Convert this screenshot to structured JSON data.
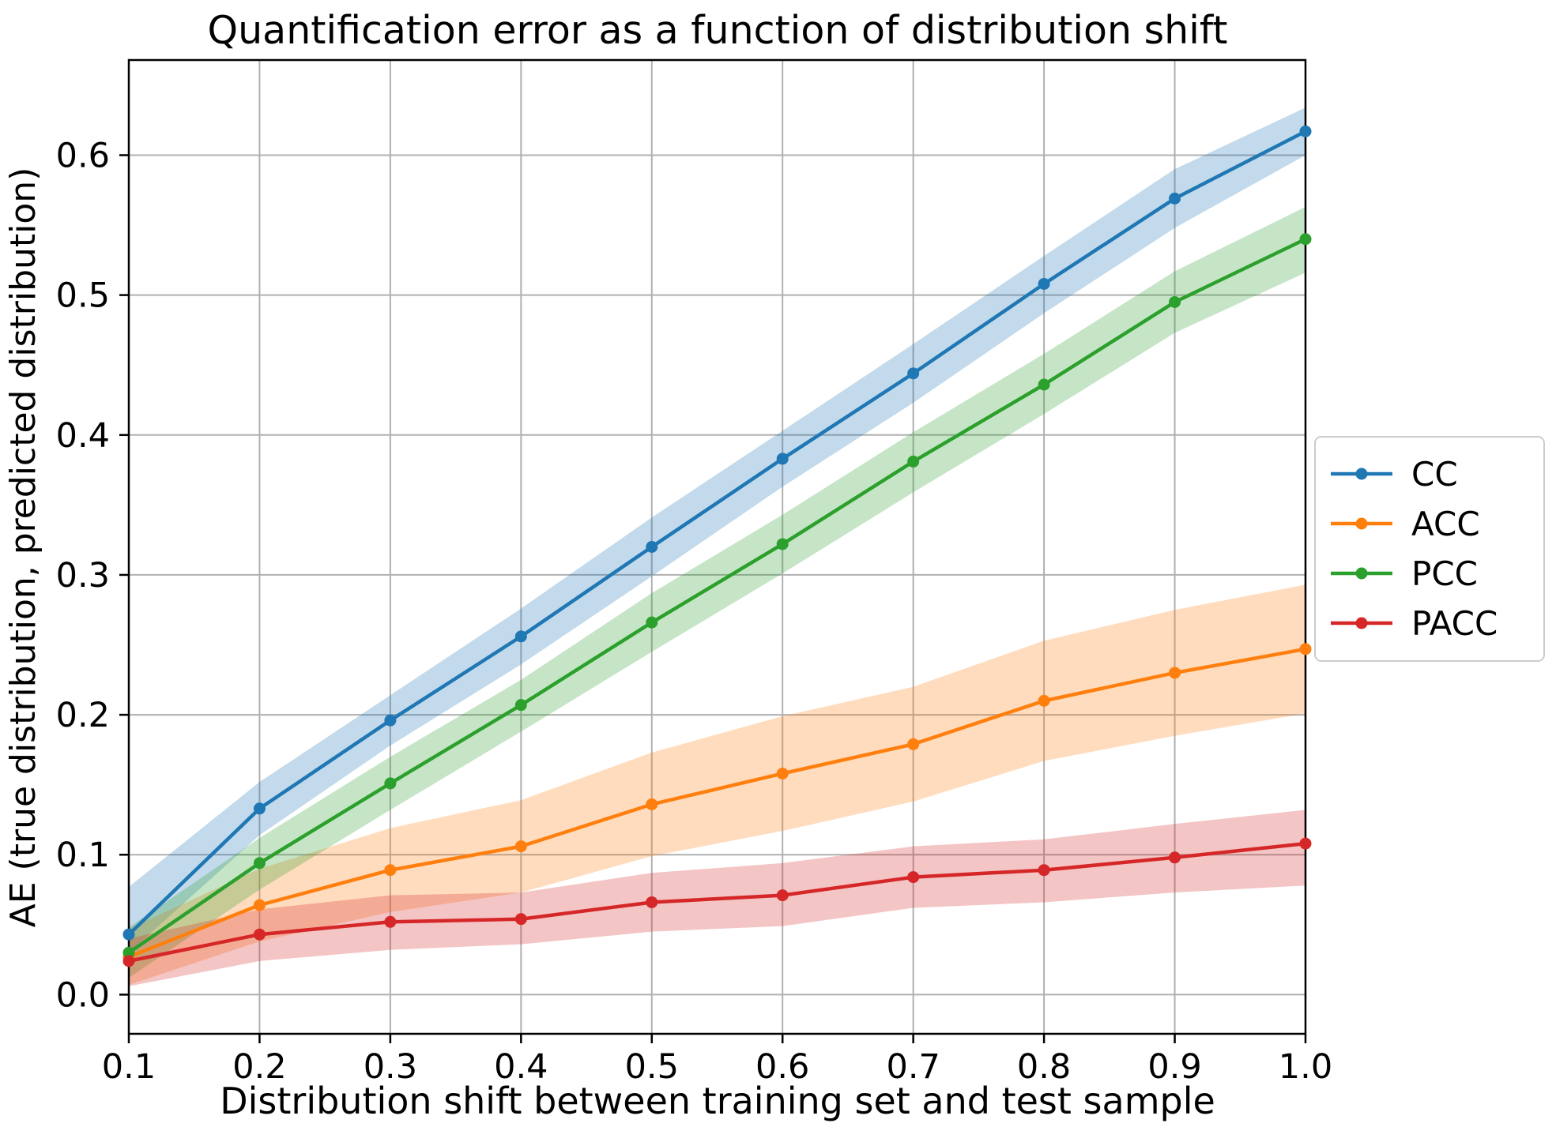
{
  "figure": {
    "background": "#ffffff"
  },
  "chart_data": {
    "type": "line",
    "title": "Quantification error as a function of distribution shift",
    "xlabel": "Distribution shift between training set and test sample",
    "ylabel": "AE (true distribution, predicted distribution)",
    "x": [
      0.1,
      0.2,
      0.3,
      0.4,
      0.5,
      0.6,
      0.7,
      0.8,
      0.9,
      1.0
    ],
    "x_tick_labels": [
      "0.1",
      "0.2",
      "0.3",
      "0.4",
      "0.5",
      "0.6",
      "0.7",
      "0.8",
      "0.9",
      "1.0"
    ],
    "y_ticks": [
      0.0,
      0.1,
      0.2,
      0.3,
      0.4,
      0.5,
      0.6
    ],
    "y_tick_labels": [
      "0.0",
      "0.1",
      "0.2",
      "0.3",
      "0.4",
      "0.5",
      "0.6"
    ],
    "xlim": [
      0.1,
      1.0
    ],
    "ylim": [
      -0.028,
      0.668
    ],
    "grid": true,
    "grid_color": "#b0b0b0",
    "spine_color": "#000000",
    "band_opacity": 0.27,
    "marker": "circle",
    "legend": {
      "position": "right-outside",
      "entries": [
        "CC",
        "ACC",
        "PCC",
        "PACC"
      ],
      "border_color": "#cccccc",
      "background": "#ffffff"
    },
    "series": [
      {
        "name": "CC",
        "color": "#1f77b4",
        "values": [
          0.043,
          0.133,
          0.196,
          0.256,
          0.32,
          0.383,
          0.444,
          0.508,
          0.569,
          0.617
        ],
        "band_lower": [
          0.03,
          0.114,
          0.178,
          0.236,
          0.299,
          0.363,
          0.423,
          0.487,
          0.548,
          0.6
        ],
        "band_upper": [
          0.077,
          0.152,
          0.214,
          0.276,
          0.341,
          0.403,
          0.465,
          0.528,
          0.59,
          0.634
        ]
      },
      {
        "name": "ACC",
        "color": "#ff7f0e",
        "values": [
          0.027,
          0.064,
          0.089,
          0.106,
          0.136,
          0.158,
          0.179,
          0.21,
          0.23,
          0.247
        ],
        "band_lower": [
          0.007,
          0.038,
          0.059,
          0.073,
          0.099,
          0.117,
          0.138,
          0.167,
          0.185,
          0.201
        ],
        "band_upper": [
          0.047,
          0.09,
          0.119,
          0.139,
          0.173,
          0.199,
          0.22,
          0.253,
          0.275,
          0.293
        ]
      },
      {
        "name": "PCC",
        "color": "#2ca02c",
        "values": [
          0.03,
          0.094,
          0.151,
          0.207,
          0.266,
          0.322,
          0.381,
          0.436,
          0.495,
          0.54
        ],
        "band_lower": [
          0.012,
          0.075,
          0.132,
          0.188,
          0.245,
          0.301,
          0.359,
          0.415,
          0.473,
          0.516
        ],
        "band_upper": [
          0.048,
          0.112,
          0.17,
          0.225,
          0.287,
          0.343,
          0.402,
          0.458,
          0.517,
          0.563
        ]
      },
      {
        "name": "PACC",
        "color": "#d62728",
        "values": [
          0.024,
          0.043,
          0.052,
          0.054,
          0.066,
          0.071,
          0.084,
          0.089,
          0.098,
          0.108
        ],
        "band_lower": [
          0.006,
          0.024,
          0.032,
          0.036,
          0.045,
          0.049,
          0.062,
          0.066,
          0.073,
          0.078
        ],
        "band_upper": [
          0.04,
          0.061,
          0.071,
          0.073,
          0.087,
          0.094,
          0.106,
          0.111,
          0.122,
          0.132
        ]
      }
    ]
  }
}
